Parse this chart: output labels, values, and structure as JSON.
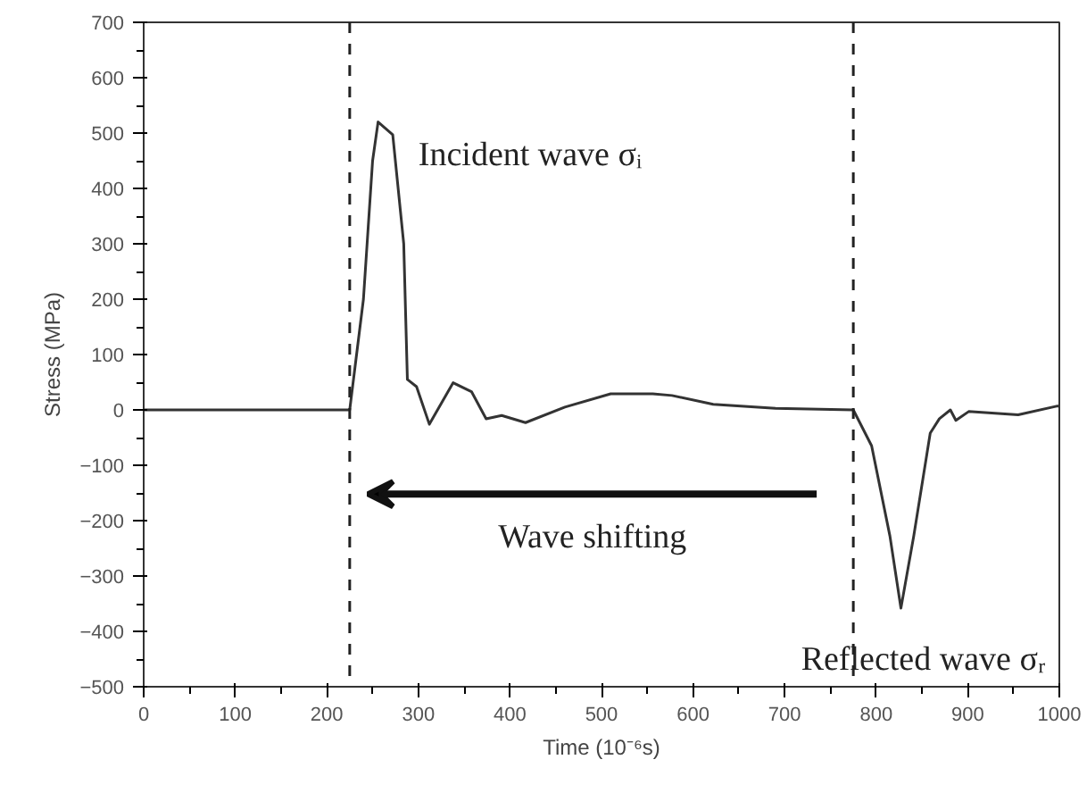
{
  "chart_data": {
    "type": "line",
    "xlabel": "Time (10⁻⁶s)",
    "ylabel": "Stress (MPa)",
    "x": [
      0,
      100,
      200,
      225,
      240,
      250,
      256,
      272,
      284,
      288,
      298,
      312,
      338,
      358,
      374,
      391,
      417,
      460,
      510,
      556,
      577,
      622,
      690,
      775,
      795,
      815,
      827,
      841,
      859,
      869,
      881,
      887,
      901,
      955,
      998,
      1000
    ],
    "series": [
      {
        "color": "#333333",
        "values": [
          0,
          0,
          0,
          0,
          200,
          450,
          520,
          497,
          300,
          55,
          42,
          -26,
          49,
          33,
          -16,
          -10,
          -23,
          5,
          29,
          29,
          26,
          10,
          3,
          0,
          -65,
          -228,
          -358,
          -228,
          -42,
          -16,
          0,
          -19,
          -3,
          -9,
          7,
          7
        ]
      }
    ],
    "xlim": [
      0,
      1000
    ],
    "ylim": [
      -500,
      700
    ],
    "xticks": [
      0,
      100,
      200,
      300,
      400,
      500,
      600,
      700,
      800,
      900,
      1000
    ],
    "yticks": [
      -500,
      -400,
      -300,
      -200,
      -100,
      0,
      100,
      200,
      300,
      400,
      500,
      600,
      700
    ],
    "grid": false,
    "marker": "none",
    "line_style": "solid",
    "ref_lines": [
      {
        "axis": "x",
        "value": 225,
        "line_style": "dashed",
        "color": "#222222"
      },
      {
        "axis": "x",
        "value": 775,
        "line_style": "dashed",
        "color": "#222222"
      }
    ],
    "annotations": [
      "Incident wave σᵢ",
      "Wave shifting",
      "Reflected wave σᵣ"
    ]
  }
}
